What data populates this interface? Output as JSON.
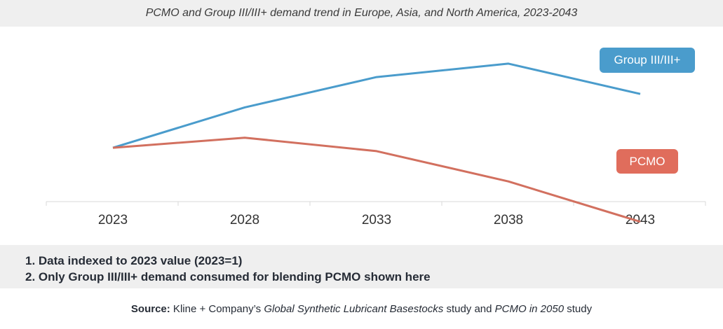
{
  "title": "PCMO and Group III/III+ demand trend in Europe, Asia, and North America, 2023-2043",
  "chart_data": {
    "type": "line",
    "title": "PCMO and Group III/III+ demand trend in Europe, Asia, and North America, 2023-2043",
    "xlabel": "",
    "ylabel": "",
    "x": [
      "2023",
      "2028",
      "2033",
      "2038",
      "2043"
    ],
    "grid": false,
    "ylim": [
      0.84,
      1.36
    ],
    "series": [
      {
        "name": "Group III/III+",
        "color": "#4a9ccc",
        "values": [
          1.0,
          1.12,
          1.21,
          1.25,
          1.16
        ]
      },
      {
        "name": "PCMO",
        "color": "#d2705f",
        "values": [
          1.0,
          1.03,
          0.99,
          0.9,
          0.78
        ]
      }
    ]
  },
  "legend": {
    "group3": {
      "label": "Group III/III+",
      "color": "#4a9ccc"
    },
    "pcmo": {
      "label": "PCMO",
      "color": "#e06d5c"
    }
  },
  "notes": [
    "1. Data indexed to 2023 value (2023=1)",
    "2. Only Group III/III+ demand consumed for blending PCMO shown here"
  ],
  "source": {
    "label": "Source:",
    "pre": " Kline + Company’s ",
    "study1": "Global Synthetic Lubricant Basestocks",
    "mid": " study and ",
    "study2": "PCMO in 2050",
    "post": " study"
  }
}
